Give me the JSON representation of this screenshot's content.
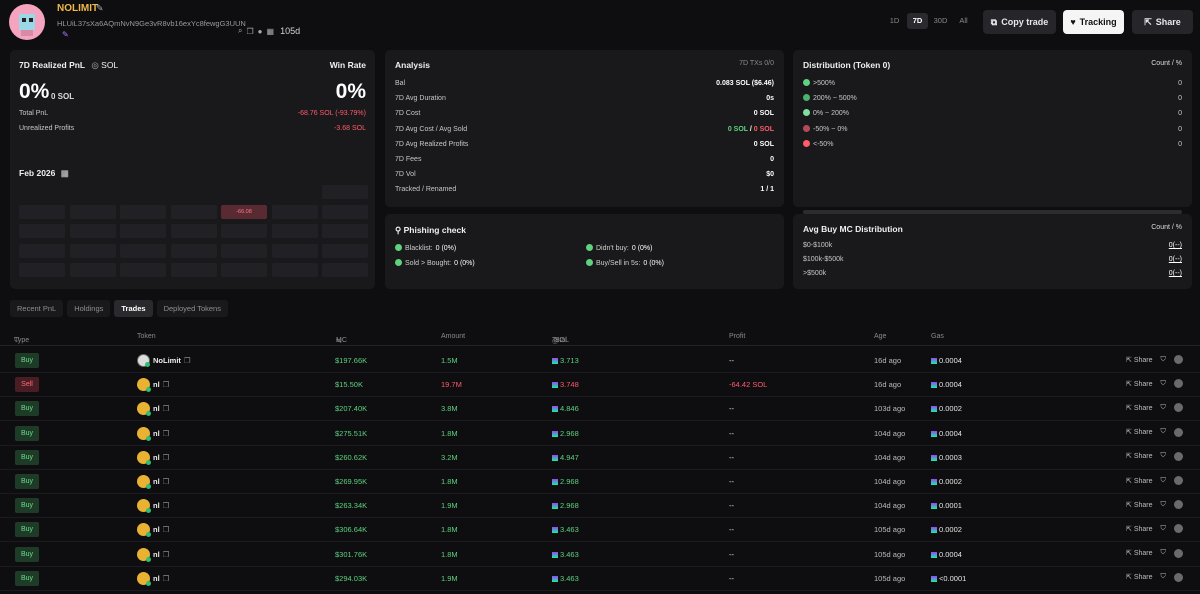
{
  "header": {
    "name": "NOLIMIT",
    "address": "HLUiL37sXa6AQmNvN9Ge3vR8vb16exYc8fewgG3UUN",
    "age": "105d",
    "periods": [
      "1D",
      "7D",
      "30D",
      "All"
    ],
    "active_period": "7D",
    "copy_trade": "Copy trade",
    "tracking": "Tracking",
    "share": "Share"
  },
  "pnl": {
    "title": "7D Realized PnL",
    "unit": "SOL",
    "win_rate_label": "Win Rate",
    "pnl_pct": "0%",
    "pnl_sol": "0 SOL",
    "win_rate": "0%",
    "total_pnl_label": "Total PnL",
    "total_pnl": "-68.76 SOL (-93.79%)",
    "unrealized_label": "Unrealized Profits",
    "unrealized": "-3.68 SOL",
    "month": "Feb 2026",
    "cal_value": "-66.08"
  },
  "analysis": {
    "title": "Analysis",
    "txs": "7D TXs 0/0",
    "rows": [
      {
        "label": "Bal",
        "value": "0.083 SOL ($6.46)"
      },
      {
        "label": "7D Avg Duration",
        "value": "0s"
      },
      {
        "label": "7D Cost",
        "value": "0 SOL"
      },
      {
        "label": "7D Avg Cost / Avg Sold",
        "value_a": "0 SOL",
        "sep": " / ",
        "value_b": "0 SOL"
      },
      {
        "label": "7D Avg Realized Profits",
        "value": "0 SOL"
      },
      {
        "label": "7D Fees",
        "value": "0"
      },
      {
        "label": "7D Vol",
        "value": "$0"
      },
      {
        "label": "Tracked / Renamed",
        "value": "1 / 1"
      }
    ]
  },
  "distribution": {
    "title": "Distribution (Token 0)",
    "count_label": "Count / %",
    "rows": [
      {
        "label": ">500%",
        "value": "0",
        "color": "#5ed27f"
      },
      {
        "label": "200% ~ 500%",
        "value": "0",
        "color": "#4bb36b"
      },
      {
        "label": "0% ~ 200%",
        "value": "0",
        "color": "#7fe0a0"
      },
      {
        "label": "-50% ~ 0%",
        "value": "0",
        "color": "#b24a5a"
      },
      {
        "label": "<-50%",
        "value": "0",
        "color": "#ff5b6a"
      }
    ]
  },
  "phishing": {
    "title": "Phishing check",
    "items": [
      {
        "label": "Blacklist:",
        "value": "0 (0%)"
      },
      {
        "label": "Didn't buy:",
        "value": "0 (0%)"
      },
      {
        "label": "Sold > Bought:",
        "value": "0 (0%)"
      },
      {
        "label": "Buy/Sell in 5s:",
        "value": "0 (0%)"
      }
    ]
  },
  "mc_dist": {
    "title": "Avg Buy MC Distribution",
    "count_label": "Count / %",
    "rows": [
      {
        "label": "$0-$100k",
        "value": "0(--)"
      },
      {
        "label": "$100k-$500k",
        "value": "0(--)"
      },
      {
        "label": ">$500k",
        "value": "0(--)"
      }
    ]
  },
  "tabs": [
    "Recent PnL",
    "Holdings",
    "Trades",
    "Deployed Tokens"
  ],
  "active_tab": "Trades",
  "table": {
    "headers": [
      "Type",
      "Token",
      "MC",
      "Amount",
      "Total",
      "SOL",
      "Profit",
      "Age",
      "Gas"
    ],
    "share_label": "Share",
    "rows": [
      {
        "type": "Buy",
        "token": "NoLimit",
        "mc": "$197.66K",
        "amount": "1.5M",
        "total": "3.713",
        "profit": "--",
        "age": "16d ago",
        "gas": "0.0004"
      },
      {
        "type": "Sell",
        "token": "nl",
        "mc": "$15.50K",
        "amount": "19.7M",
        "total": "3.748",
        "profit": "-64.42 SOL",
        "age": "16d ago",
        "gas": "0.0004"
      },
      {
        "type": "Buy",
        "token": "nl",
        "mc": "$207.40K",
        "amount": "3.8M",
        "total": "4.846",
        "profit": "--",
        "age": "103d ago",
        "gas": "0.0002"
      },
      {
        "type": "Buy",
        "token": "nl",
        "mc": "$275.51K",
        "amount": "1.8M",
        "total": "2.968",
        "profit": "--",
        "age": "104d ago",
        "gas": "0.0004"
      },
      {
        "type": "Buy",
        "token": "nl",
        "mc": "$260.62K",
        "amount": "3.2M",
        "total": "4.947",
        "profit": "--",
        "age": "104d ago",
        "gas": "0.0003"
      },
      {
        "type": "Buy",
        "token": "nl",
        "mc": "$269.95K",
        "amount": "1.8M",
        "total": "2.968",
        "profit": "--",
        "age": "104d ago",
        "gas": "0.0002"
      },
      {
        "type": "Buy",
        "token": "nl",
        "mc": "$263.34K",
        "amount": "1.9M",
        "total": "2.968",
        "profit": "--",
        "age": "104d ago",
        "gas": "0.0001"
      },
      {
        "type": "Buy",
        "token": "nl",
        "mc": "$306.64K",
        "amount": "1.8M",
        "total": "3.463",
        "profit": "--",
        "age": "105d ago",
        "gas": "0.0002"
      },
      {
        "type": "Buy",
        "token": "nl",
        "mc": "$301.76K",
        "amount": "1.8M",
        "total": "3.463",
        "profit": "--",
        "age": "105d ago",
        "gas": "0.0004"
      },
      {
        "type": "Buy",
        "token": "nl",
        "mc": "$294.03K",
        "amount": "1.9M",
        "total": "3.463",
        "profit": "--",
        "age": "105d ago",
        "gas": "<0.0001"
      }
    ]
  }
}
